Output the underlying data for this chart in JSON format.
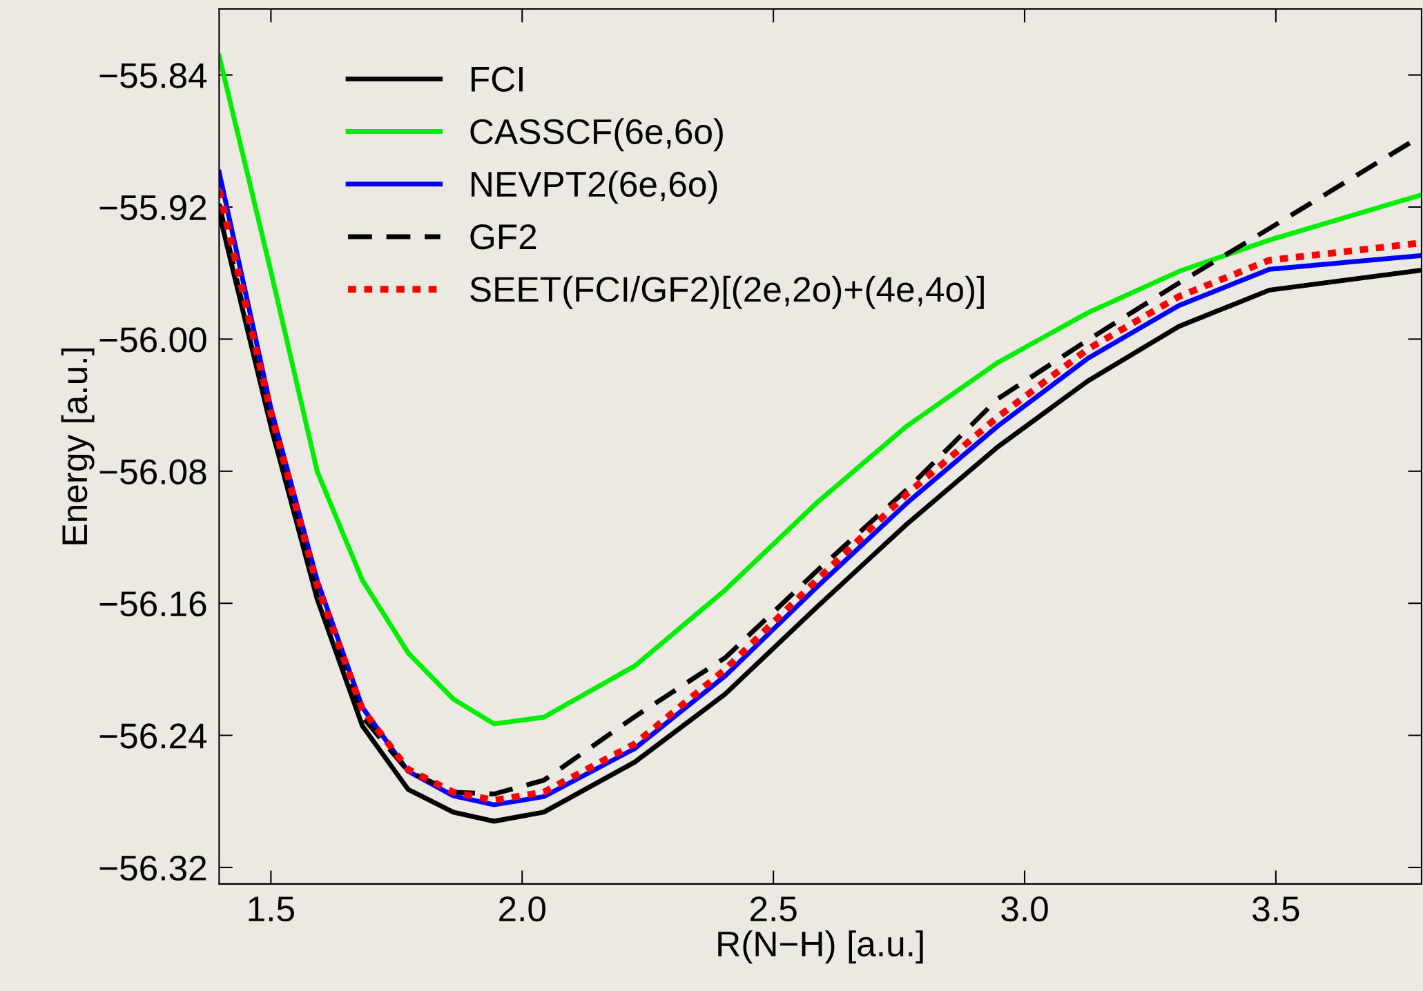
{
  "chart_data": {
    "type": "line",
    "xlabel": "R(N−H) [a.u.]",
    "ylabel": "Energy [a.u.]",
    "xlim": [
      1.397,
      3.79
    ],
    "ylim": [
      -56.33,
      -55.8
    ],
    "xticks": [
      1.5,
      {
        "value": 2.0,
        "label": "2.0"
      },
      2.5,
      {
        "value": 3.0,
        "label": "3.0"
      },
      3.5
    ],
    "yticks": [
      {
        "value": -55.84,
        "label": "−55.84"
      },
      {
        "value": -55.92,
        "label": "−55.92"
      },
      {
        "value": -56.0,
        "label": "−56.00"
      },
      {
        "value": -56.08,
        "label": "−56.08"
      },
      {
        "value": -56.16,
        "label": "−56.16"
      },
      {
        "value": -56.24,
        "label": "−56.24"
      },
      {
        "value": -56.32,
        "label": "−56.32"
      }
    ],
    "grid": false,
    "legend": "top left",
    "marker": "none",
    "x": [
      1.397,
      1.5,
      1.592,
      1.682,
      1.773,
      1.863,
      1.944,
      2.043,
      2.224,
      2.404,
      2.585,
      2.765,
      2.946,
      3.126,
      3.307,
      3.487,
      3.79
    ],
    "series": [
      {
        "name": "FCI",
        "color": "#000000",
        "line_style": "solid",
        "values": [
          -55.9236,
          -56.0528,
          -56.1573,
          -56.2342,
          -56.2727,
          -56.2865,
          -56.292,
          -56.2865,
          -56.2562,
          -56.215,
          -56.1627,
          -56.1122,
          -56.0654,
          -56.0253,
          -55.9923,
          -55.9703,
          -55.9582
        ]
      },
      {
        "name": "CASSCF(6e,6o)",
        "color": "#00ee00",
        "line_style": "solid",
        "values": [
          -55.8285,
          -55.959,
          -56.08,
          -56.146,
          -56.19,
          -56.218,
          -56.233,
          -56.229,
          -56.198,
          -56.152,
          -56.0995,
          -56.0528,
          -56.0143,
          -55.984,
          -55.959,
          -55.94,
          -55.9126
        ]
      },
      {
        "name": "NEVPT2(6e,6o)",
        "color": "#0000ff",
        "line_style": "solid",
        "values": [
          -55.8988,
          -56.0418,
          -56.146,
          -56.223,
          -56.2617,
          -56.2766,
          -56.282,
          -56.2771,
          -56.248,
          -56.204,
          -56.1506,
          -56.0995,
          -56.0528,
          -56.0116,
          -55.9797,
          -55.9577,
          -55.9494
        ]
      },
      {
        "name": "GF2",
        "color": "#000000",
        "line_style": "dashed",
        "values": [
          -55.9181,
          -56.0528,
          -56.155,
          -56.2287,
          -56.2617,
          -56.2744,
          -56.2755,
          -56.2672,
          -56.2287,
          -56.193,
          -56.1408,
          -56.0913,
          -56.0363,
          -56.0005,
          -55.966,
          -55.933,
          -55.8768
        ]
      },
      {
        "name": "SEET(FCI/GF2)[(2e,2o)+(4e,4o)]",
        "color": "#ff0000",
        "line_style": "dotted",
        "values": [
          -55.9098,
          -56.0445,
          -56.149,
          -56.2243,
          -56.2606,
          -56.2744,
          -56.2793,
          -56.2744,
          -56.2452,
          -56.2001,
          -56.1463,
          -56.094,
          -56.0473,
          -56.006,
          -55.9742,
          -55.9522,
          -55.9417
        ]
      }
    ]
  }
}
